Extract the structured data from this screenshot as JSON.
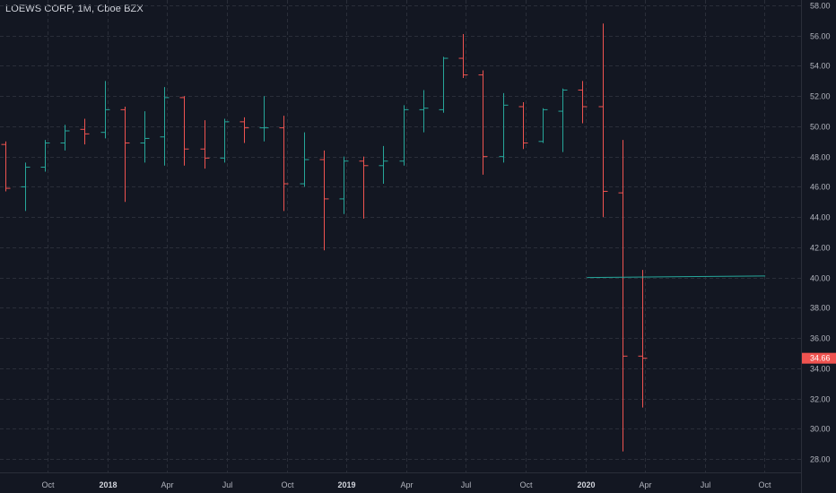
{
  "title": "LOEWS CORP, 1M, Cboe BZX",
  "colors": {
    "background": "#131722",
    "grid": "#2a2e39",
    "up": "#26a69a",
    "down": "#ef5350",
    "axis_text": "#b2b5be",
    "price_tag": "#ef5350"
  },
  "chart_data": {
    "type": "ohlc",
    "title": "LOEWS CORP, 1M, Cboe BZX",
    "ylim": [
      27,
      58.5
    ],
    "grid": true,
    "y_ticks": [
      "28.00",
      "30.00",
      "32.00",
      "34.00",
      "36.00",
      "38.00",
      "40.00",
      "42.00",
      "44.00",
      "46.00",
      "48.00",
      "50.00",
      "52.00",
      "54.00",
      "56.00",
      "58.00"
    ],
    "x_ticks": [
      {
        "label": "Oct",
        "index": 2,
        "bold": false
      },
      {
        "label": "2018",
        "index": 5,
        "bold": true
      },
      {
        "label": "Apr",
        "index": 8,
        "bold": false
      },
      {
        "label": "Jul",
        "index": 11,
        "bold": false
      },
      {
        "label": "Oct",
        "index": 14,
        "bold": false
      },
      {
        "label": "2019",
        "index": 17,
        "bold": true
      },
      {
        "label": "Apr",
        "index": 20,
        "bold": false
      },
      {
        "label": "Jul",
        "index": 23,
        "bold": false
      },
      {
        "label": "Oct",
        "index": 26,
        "bold": false
      },
      {
        "label": "2020",
        "index": 29,
        "bold": true
      },
      {
        "label": "Apr",
        "index": 32,
        "bold": false
      },
      {
        "label": "Jul",
        "index": 35,
        "bold": false
      },
      {
        "label": "Oct",
        "index": 38,
        "bold": false
      }
    ],
    "bars": [
      {
        "o": 48.8,
        "h": 49.0,
        "l": 45.7,
        "c": 45.9
      },
      {
        "o": 46.0,
        "h": 47.6,
        "l": 44.4,
        "c": 47.3
      },
      {
        "o": 47.3,
        "h": 49.1,
        "l": 47.0,
        "c": 48.9
      },
      {
        "o": 48.9,
        "h": 50.1,
        "l": 48.4,
        "c": 49.7
      },
      {
        "o": 49.8,
        "h": 50.5,
        "l": 48.8,
        "c": 49.5
      },
      {
        "o": 49.6,
        "h": 53.0,
        "l": 49.2,
        "c": 51.1
      },
      {
        "o": 51.1,
        "h": 51.3,
        "l": 45.0,
        "c": 48.9
      },
      {
        "o": 48.9,
        "h": 51.0,
        "l": 47.6,
        "c": 49.2
      },
      {
        "o": 49.3,
        "h": 52.6,
        "l": 47.4,
        "c": 51.9
      },
      {
        "o": 51.9,
        "h": 52.0,
        "l": 47.4,
        "c": 48.5
      },
      {
        "o": 48.5,
        "h": 50.4,
        "l": 47.2,
        "c": 47.9
      },
      {
        "o": 47.9,
        "h": 50.5,
        "l": 47.6,
        "c": 50.3
      },
      {
        "o": 50.3,
        "h": 50.6,
        "l": 48.9,
        "c": 49.9
      },
      {
        "o": 49.9,
        "h": 52.0,
        "l": 49.0,
        "c": 49.9
      },
      {
        "o": 49.9,
        "h": 50.7,
        "l": 44.4,
        "c": 46.2
      },
      {
        "o": 46.2,
        "h": 49.6,
        "l": 46.0,
        "c": 47.8
      },
      {
        "o": 47.8,
        "h": 48.4,
        "l": 41.8,
        "c": 45.2
      },
      {
        "o": 45.2,
        "h": 48.0,
        "l": 44.2,
        "c": 47.7
      },
      {
        "o": 47.7,
        "h": 48.0,
        "l": 43.9,
        "c": 47.4
      },
      {
        "o": 47.4,
        "h": 48.7,
        "l": 46.2,
        "c": 47.7
      },
      {
        "o": 47.7,
        "h": 51.4,
        "l": 47.4,
        "c": 51.1
      },
      {
        "o": 51.1,
        "h": 52.4,
        "l": 49.6,
        "c": 51.2
      },
      {
        "o": 51.1,
        "h": 54.6,
        "l": 50.9,
        "c": 54.5
      },
      {
        "o": 54.5,
        "h": 56.1,
        "l": 53.2,
        "c": 53.4
      },
      {
        "o": 53.4,
        "h": 53.7,
        "l": 46.8,
        "c": 48.0
      },
      {
        "o": 48.0,
        "h": 52.2,
        "l": 47.6,
        "c": 51.4
      },
      {
        "o": 51.3,
        "h": 51.6,
        "l": 48.5,
        "c": 48.9
      },
      {
        "o": 49.0,
        "h": 51.2,
        "l": 48.9,
        "c": 51.1
      },
      {
        "o": 51.0,
        "h": 52.5,
        "l": 48.3,
        "c": 52.4
      },
      {
        "o": 52.4,
        "h": 53.0,
        "l": 50.2,
        "c": 51.3
      },
      {
        "o": 51.3,
        "h": 56.8,
        "l": 44.0,
        "c": 45.7
      },
      {
        "o": 45.6,
        "h": 49.1,
        "l": 28.5,
        "c": 34.8
      },
      {
        "o": 34.8,
        "h": 40.5,
        "l": 31.4,
        "c": 34.66
      }
    ],
    "horizontal_line": {
      "from_index": 29,
      "to_index": 38,
      "price_from": 40.0,
      "price_to": 40.1
    },
    "last_price": "34.66",
    "last_value": 34.66
  }
}
